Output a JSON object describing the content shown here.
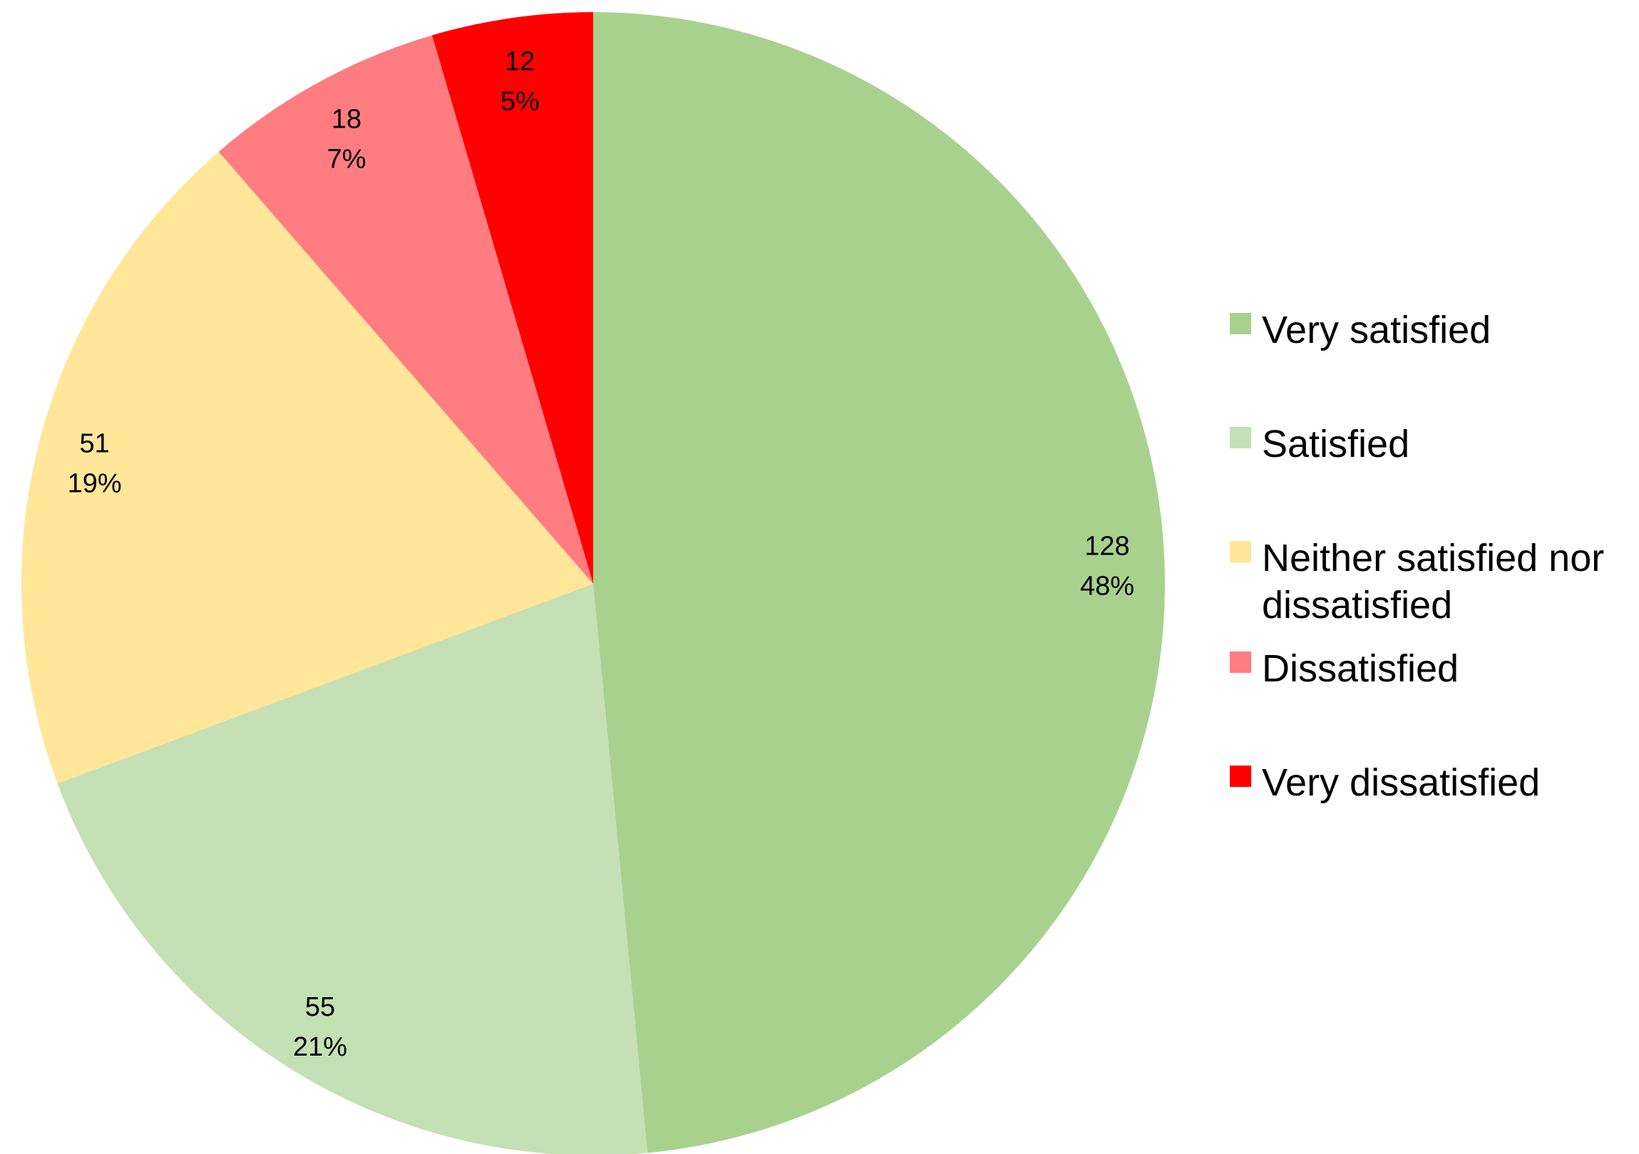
{
  "chart_data": {
    "type": "pie",
    "categories": [
      "Very satisfied",
      "Satisfied",
      "Neither satisfied nor dissatisfied",
      "Dissatisfied",
      "Very dissatisfied"
    ],
    "values": [
      128,
      55,
      51,
      18,
      12
    ],
    "percent_labels": [
      "48%",
      "21%",
      "19%",
      "7%",
      "5%"
    ],
    "colors": [
      "#a9d18e",
      "#c5e0b4",
      "#ffe699",
      "#ff7c80",
      "#ff0000"
    ],
    "legend_lines": [
      [
        "Very satisfied"
      ],
      [
        "Satisfied"
      ],
      [
        "Neither satisfied nor",
        "dissatisfied"
      ],
      [
        "Dissatisfied"
      ],
      [
        "Very dissatisfied"
      ]
    ],
    "start": "12 o'clock",
    "direction": "clockwise",
    "legend_position": "right"
  }
}
